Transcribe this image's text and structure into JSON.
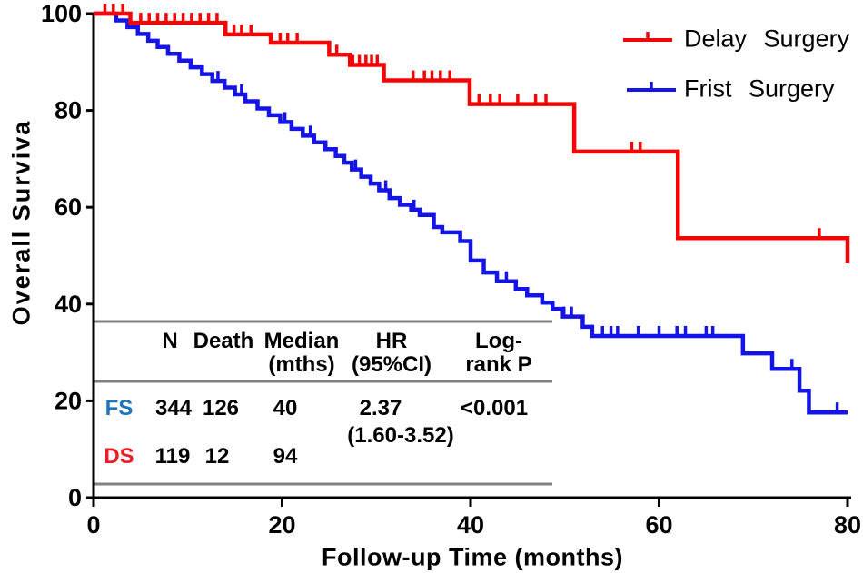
{
  "figure": {
    "y_axis": {
      "title": "Overall Surviva",
      "ticks": [
        100,
        80,
        60,
        40,
        20,
        0
      ],
      "range": [
        0,
        100
      ]
    },
    "x_axis": {
      "title": "Follow-up Time (months)",
      "ticks": [
        0,
        20,
        40,
        60,
        80
      ],
      "range": [
        0,
        80
      ]
    },
    "legend": {
      "position": "top-right",
      "items": [
        {
          "label": "Delay Surgery",
          "color": "#f40505",
          "marker": "km-line-with-censor-tick"
        },
        {
          "label": "Frist Surgery",
          "color": "#1414e6",
          "marker": "km-line-with-censor-tick"
        }
      ]
    },
    "colors": {
      "axis": "#000000",
      "table_rule": "#808080",
      "fs_label": "#1c75bc",
      "ds_label": "#ed1c24"
    }
  },
  "chart_data": {
    "type": "line",
    "subtype": "kaplan-meier-step",
    "title": "",
    "xlabel": "Follow-up Time (months)",
    "ylabel": "Overall Surviva",
    "xlim": [
      0,
      80
    ],
    "ylim": [
      0,
      100
    ],
    "grid": false,
    "legend_position": "top-right",
    "series": [
      {
        "name": "Delay Surgery",
        "color": "#f40505",
        "steps": [
          [
            0,
            100
          ],
          [
            3.9,
            98.1
          ],
          [
            14.0,
            95.7
          ],
          [
            18.8,
            94.0
          ],
          [
            25.0,
            91.5
          ],
          [
            27.2,
            89.4
          ],
          [
            30.8,
            86.2
          ],
          [
            39.9,
            81.3
          ],
          [
            51.0,
            71.5
          ],
          [
            62.0,
            53.6
          ]
        ],
        "end_x": 80,
        "end_drop_to": 48.4,
        "censor_ticks": [
          [
            1.2,
            100
          ],
          [
            2.1,
            100
          ],
          [
            3.1,
            100
          ],
          [
            5.0,
            98.1
          ],
          [
            5.9,
            98.1
          ],
          [
            6.8,
            98.1
          ],
          [
            7.7,
            98.1
          ],
          [
            8.6,
            98.1
          ],
          [
            9.5,
            98.1
          ],
          [
            10.4,
            98.1
          ],
          [
            11.3,
            98.1
          ],
          [
            12.2,
            98.1
          ],
          [
            13.1,
            98.1
          ],
          [
            14.9,
            95.7
          ],
          [
            15.7,
            95.7
          ],
          [
            16.7,
            95.7
          ],
          [
            19.8,
            94.0
          ],
          [
            20.6,
            94.0
          ],
          [
            21.6,
            94.0
          ],
          [
            25.8,
            91.5
          ],
          [
            27.5,
            89.4
          ],
          [
            28.2,
            89.4
          ],
          [
            28.9,
            89.4
          ],
          [
            29.5,
            89.4
          ],
          [
            30.1,
            89.4
          ],
          [
            33.9,
            86.2
          ],
          [
            35.1,
            86.2
          ],
          [
            35.9,
            86.2
          ],
          [
            36.8,
            86.2
          ],
          [
            37.8,
            86.2
          ],
          [
            40.9,
            81.3
          ],
          [
            42.1,
            81.3
          ],
          [
            43.1,
            81.3
          ],
          [
            45.0,
            81.3
          ],
          [
            46.9,
            81.3
          ],
          [
            48.0,
            81.3
          ],
          [
            57.1,
            71.5
          ],
          [
            58.0,
            71.5
          ],
          [
            77.0,
            53.6
          ]
        ]
      },
      {
        "name": "Frist Surgery",
        "color": "#1414e6",
        "steps": [
          [
            0,
            100
          ],
          [
            2.4,
            98.6
          ],
          [
            3.6,
            97.2
          ],
          [
            4.7,
            95.8
          ],
          [
            5.8,
            94.4
          ],
          [
            6.8,
            93.1
          ],
          [
            7.9,
            91.7
          ],
          [
            9.1,
            90.3
          ],
          [
            10.3,
            88.9
          ],
          [
            11.5,
            87.5
          ],
          [
            12.6,
            86.1
          ],
          [
            13.9,
            84.7
          ],
          [
            15.0,
            83.3
          ],
          [
            16.1,
            81.9
          ],
          [
            17.4,
            80.4
          ],
          [
            18.6,
            79.0
          ],
          [
            19.8,
            77.6
          ],
          [
            21.0,
            76.2
          ],
          [
            22.2,
            74.8
          ],
          [
            23.4,
            73.4
          ],
          [
            24.6,
            72.0
          ],
          [
            25.7,
            70.6
          ],
          [
            26.6,
            69.2
          ],
          [
            27.4,
            67.8
          ],
          [
            28.4,
            66.3
          ],
          [
            29.4,
            64.9
          ],
          [
            30.3,
            63.5
          ],
          [
            31.4,
            61.9
          ],
          [
            32.5,
            60.5
          ],
          [
            33.7,
            59.5
          ],
          [
            34.6,
            58.4
          ],
          [
            36.1,
            55.9
          ],
          [
            37.0,
            54.8
          ],
          [
            38.9,
            53.0
          ],
          [
            40.0,
            49.0
          ],
          [
            41.4,
            46.5
          ],
          [
            42.8,
            44.7
          ],
          [
            44.8,
            43.1
          ],
          [
            46.0,
            41.8
          ],
          [
            47.6,
            40.3
          ],
          [
            48.7,
            39.0
          ],
          [
            49.8,
            37.4
          ],
          [
            51.9,
            35.3
          ],
          [
            52.9,
            33.4
          ],
          [
            68.9,
            29.8
          ],
          [
            72.0,
            26.6
          ],
          [
            74.9,
            22.1
          ],
          [
            75.9,
            17.6
          ]
        ],
        "end_x": 80,
        "censor_ticks": [
          [
            13.2,
            86.1
          ],
          [
            15.7,
            83.3
          ],
          [
            20.3,
            77.6
          ],
          [
            23.0,
            74.8
          ],
          [
            27.8,
            67.8
          ],
          [
            31.0,
            63.5
          ],
          [
            34.0,
            59.5
          ],
          [
            43.8,
            44.7
          ],
          [
            49.9,
            37.4
          ],
          [
            50.7,
            37.4
          ],
          [
            54.0,
            33.4
          ],
          [
            54.9,
            33.4
          ],
          [
            55.6,
            33.4
          ],
          [
            57.8,
            33.4
          ],
          [
            60.0,
            33.4
          ],
          [
            61.9,
            33.4
          ],
          [
            62.8,
            33.4
          ],
          [
            65.0,
            33.4
          ],
          [
            65.7,
            33.4
          ],
          [
            74.1,
            26.6
          ],
          [
            78.9,
            17.6
          ]
        ]
      }
    ]
  },
  "table": {
    "headers": [
      {
        "text": "N"
      },
      {
        "text": "Death"
      },
      {
        "text": "Median\n(mths)"
      },
      {
        "text": "HR\n(95%CI)"
      },
      {
        "text": "Log-\nrank P"
      }
    ],
    "rows": [
      {
        "label": "FS",
        "label_color": "#1c75bc",
        "n": "344",
        "death": "126",
        "median": "40",
        "hr": "2.37",
        "hr_ci": "(1.60-3.52)",
        "p": "<0.001"
      },
      {
        "label": "DS",
        "label_color": "#ed1c24",
        "n": "119",
        "death": "12",
        "median": "94",
        "hr": "",
        "hr_ci": "",
        "p": ""
      }
    ]
  }
}
